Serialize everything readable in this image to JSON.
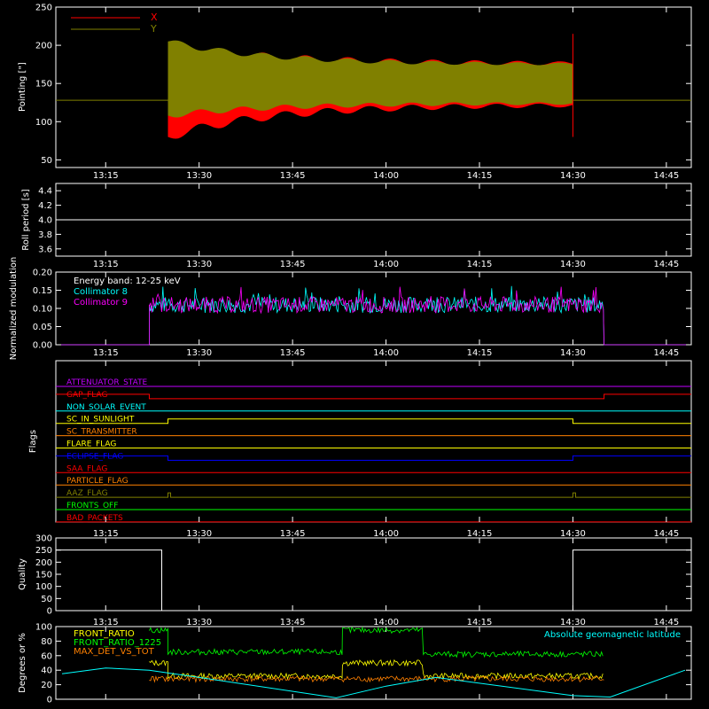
{
  "colors": {
    "background": "#000000",
    "axes": "#ffffff",
    "red": "#ff0000",
    "olive": "#808000",
    "cyan": "#00ffff",
    "magenta": "#ff00ff",
    "orange": "#ff8000",
    "yellow": "#ffff00",
    "green": "#00ff00",
    "blue": "#0000ff",
    "purple": "#c000ff"
  },
  "time_ticks": [
    "13:15",
    "13:30",
    "13:45",
    "14:00",
    "14:15",
    "14:30",
    "14:45"
  ],
  "chart_data": [
    {
      "type": "area",
      "ylabel": "Pointing [\"]",
      "ylim": [
        40,
        250
      ],
      "yticks": [
        "50",
        "100",
        "150",
        "200",
        "250"
      ],
      "legend": [
        "X",
        "Y"
      ],
      "legend_placement": "top-left",
      "baseline": 128,
      "series": [
        {
          "name": "X",
          "band_start_time": "13:25",
          "band_end_time": "14:30",
          "upper_start": 200,
          "upper_end": 176,
          "lower_start": 80,
          "lower_end": 122
        },
        {
          "name": "Y",
          "band_start_time": "13:25",
          "band_end_time": "14:30",
          "upper_start": 205,
          "upper_end": 175,
          "lower_start": 108,
          "lower_end": 124
        }
      ]
    },
    {
      "type": "line",
      "ylabel": "Roll period [s]",
      "ylim": [
        3.5,
        4.5
      ],
      "yticks": [
        "3.6",
        "3.8",
        "4.0",
        "4.2",
        "4.4"
      ],
      "value": 4.0
    },
    {
      "type": "line",
      "ylabel": "Normalized modulation",
      "ylim": [
        0.0,
        0.2
      ],
      "yticks": [
        "0.00",
        "0.05",
        "0.10",
        "0.15",
        "0.20"
      ],
      "annotation": "Energy band: 12-25 keV",
      "legend": [
        "Collimator 8",
        "Collimator 9"
      ],
      "active_start": "13:22",
      "active_end": "14:35",
      "mean": 0.11
    },
    {
      "type": "line",
      "ylabel": "Flags",
      "flags": [
        {
          "name": "ATTENUATOR_STATE",
          "color": "#c000ff"
        },
        {
          "name": "GAP_FLAG",
          "color": "#ff0000",
          "high_until": "13:22",
          "high_after": "14:35"
        },
        {
          "name": "NON_SOLAR_EVENT",
          "color": "#00ffff"
        },
        {
          "name": "SC_IN_SUNLIGHT",
          "color": "#ffff00",
          "low_until": "13:25",
          "low_after": "14:30"
        },
        {
          "name": "SC_TRANSMITTER",
          "color": "#ff8000"
        },
        {
          "name": "FLARE_FLAG",
          "color": "#ffff00"
        },
        {
          "name": "ECLIPSE_FLAG",
          "color": "#0000ff",
          "high_until": "13:25",
          "high_after": "14:30"
        },
        {
          "name": "SAA_FLAG",
          "color": "#ff0000"
        },
        {
          "name": "PARTICLE_FLAG",
          "color": "#ff8000"
        },
        {
          "name": "AAZ_FLAG",
          "color": "#808000",
          "pulses": [
            "13:25",
            "14:30"
          ]
        },
        {
          "name": "FRONTS_OFF",
          "color": "#00ff00"
        },
        {
          "name": "BAD_PACKETS",
          "color": "#ff0000"
        }
      ]
    },
    {
      "type": "line",
      "ylabel": "Quality",
      "ylim": [
        0,
        300
      ],
      "yticks": [
        "0",
        "50",
        "100",
        "150",
        "200",
        "250",
        "300"
      ],
      "high_value": 250,
      "high_until": "13:24",
      "high_after": "14:30"
    },
    {
      "type": "line",
      "ylabel": "Degrees or %",
      "ylim": [
        0,
        100
      ],
      "yticks": [
        "0",
        "20",
        "40",
        "60",
        "80",
        "100"
      ],
      "legend": [
        "FRONT_RATIO",
        "FRONT_RATIO_1225",
        "MAX_DET_VS_TOT"
      ],
      "annotation": "Absolute geomagnetic latitude",
      "active_start": "13:22",
      "active_end": "14:35",
      "series": [
        {
          "name": "FRONT_RATIO",
          "color": "#ffff00",
          "segments": [
            [
              "13:22",
              "13:25",
              50
            ],
            [
              "13:25",
              "13:53",
              32
            ],
            [
              "13:53",
              "14:06",
              50
            ],
            [
              "14:06",
              "14:35",
              32
            ]
          ]
        },
        {
          "name": "FRONT_RATIO_1225",
          "color": "#00ff00",
          "segments": [
            [
              "13:22",
              "13:25",
              95
            ],
            [
              "13:25",
              "13:53",
              65
            ],
            [
              "13:53",
              "14:06",
              95
            ],
            [
              "14:06",
              "14:35",
              62
            ]
          ]
        },
        {
          "name": "MAX_DET_VS_TOT",
          "color": "#ff8000",
          "segments": [
            [
              "13:22",
              "14:35",
              28
            ]
          ]
        }
      ],
      "latitude_points": [
        [
          "13:08",
          35
        ],
        [
          "13:15",
          43
        ],
        [
          "13:22",
          40
        ],
        [
          "13:30",
          30
        ],
        [
          "13:52",
          2
        ],
        [
          "14:00",
          18
        ],
        [
          "14:08",
          30
        ],
        [
          "14:30",
          5
        ],
        [
          "14:36",
          3
        ],
        [
          "14:48",
          40
        ]
      ]
    }
  ]
}
